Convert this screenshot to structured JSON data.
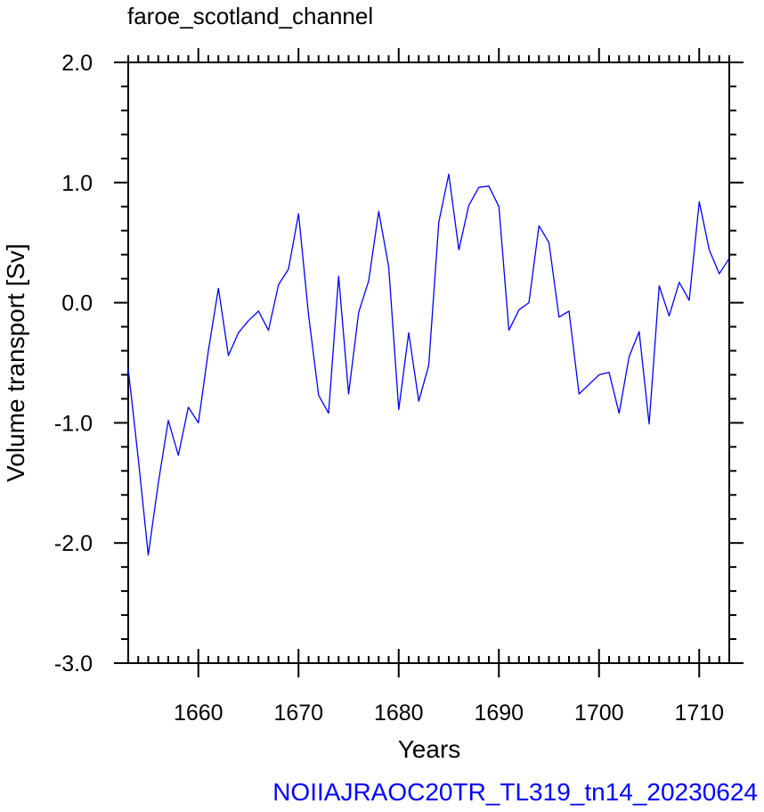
{
  "chart_data": {
    "type": "line",
    "title": "faroe_scotland_channel",
    "xlabel": "Years",
    "ylabel": "Volume transport [Sv]",
    "footer": "NOIIAJRAOC20TR_TL319_tn14_20230624",
    "xlim": [
      1653,
      1713
    ],
    "ylim": [
      -3.0,
      2.0
    ],
    "x_ticks": [
      1660,
      1670,
      1680,
      1690,
      1700,
      1710
    ],
    "x_tick_labels": [
      "1660",
      "1670",
      "1680",
      "1690",
      "1700",
      "1710"
    ],
    "y_ticks": [
      -3.0,
      -2.0,
      -1.0,
      0.0,
      1.0,
      2.0
    ],
    "y_tick_labels": [
      "-3.0",
      "-2.0",
      "-1.0",
      "0.0",
      "1.0",
      "2.0"
    ],
    "grid": false,
    "series": [
      {
        "color": "#0000ff",
        "x": [
          1653,
          1654,
          1655,
          1656,
          1657,
          1658,
          1659,
          1660,
          1661,
          1662,
          1663,
          1664,
          1665,
          1666,
          1667,
          1668,
          1669,
          1670,
          1671,
          1672,
          1673,
          1674,
          1675,
          1676,
          1677,
          1678,
          1679,
          1680,
          1681,
          1682,
          1683,
          1684,
          1685,
          1686,
          1687,
          1688,
          1689,
          1690,
          1691,
          1692,
          1693,
          1694,
          1695,
          1696,
          1697,
          1698,
          1699,
          1700,
          1701,
          1702,
          1703,
          1704,
          1705,
          1706,
          1707,
          1708,
          1709,
          1710,
          1711,
          1712,
          1713
        ],
        "values": [
          -0.55,
          -1.3,
          -2.1,
          -1.5,
          -0.98,
          -1.27,
          -0.87,
          -1.0,
          -0.4,
          0.12,
          -0.44,
          -0.25,
          -0.15,
          -0.07,
          -0.23,
          0.15,
          0.28,
          0.74,
          -0.1,
          -0.77,
          -0.92,
          0.22,
          -0.76,
          -0.08,
          0.18,
          0.76,
          0.3,
          -0.89,
          -0.25,
          -0.82,
          -0.52,
          0.67,
          1.07,
          0.44,
          0.81,
          0.96,
          0.97,
          0.8,
          -0.23,
          -0.06,
          0.0,
          0.64,
          0.5,
          -0.12,
          -0.07,
          -0.76,
          -0.68,
          -0.6,
          -0.58,
          -0.92,
          -0.45,
          -0.24,
          -1.01,
          0.14,
          -0.11,
          0.17,
          0.02,
          0.84,
          0.44,
          0.24,
          0.37
        ]
      }
    ]
  }
}
